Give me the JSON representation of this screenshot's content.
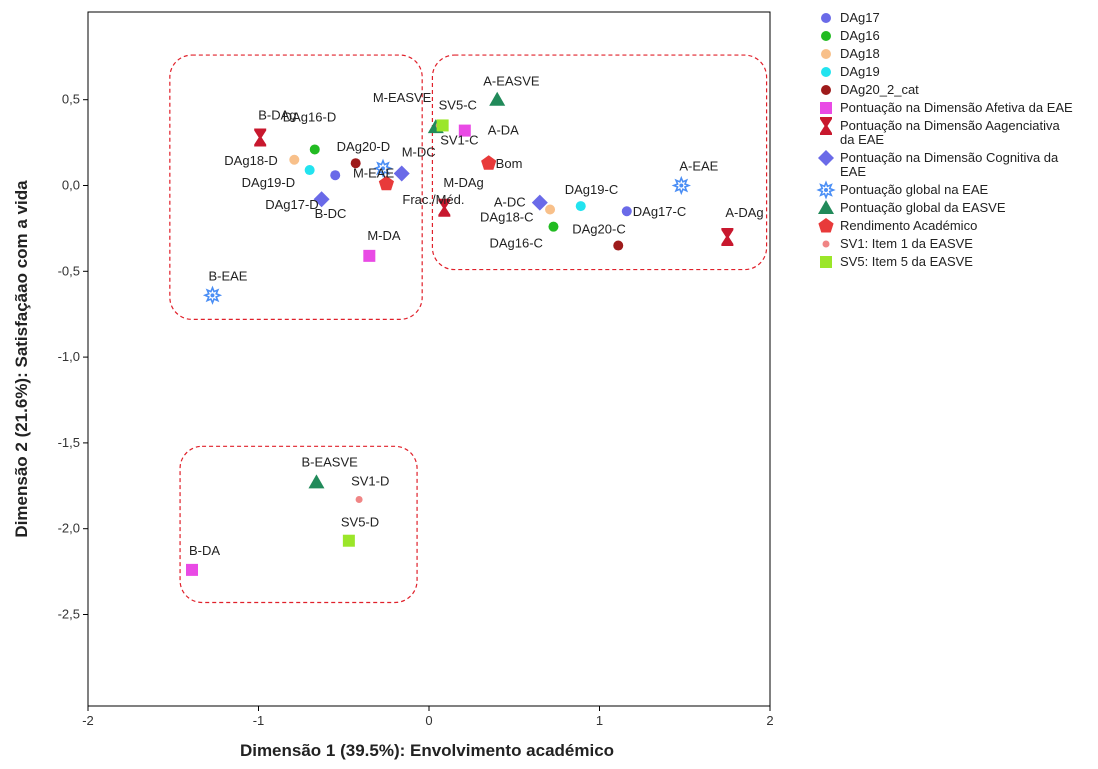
{
  "chart_data": {
    "type": "scatter",
    "xlabel": "Dimensão 1 (39.5%): Envolvimento académico",
    "ylabel": "Dimensão 2 (21.6%): Satisfaçãao com a vida",
    "xlim": [
      -2,
      2
    ],
    "ylim": [
      -3.0,
      0.85
    ],
    "xticks": [
      -2,
      -1,
      0,
      1,
      2
    ],
    "xtick_labels": [
      "-2",
      "-1",
      "0",
      "1",
      "2"
    ],
    "yticks": [
      0.5,
      0.0,
      -0.5,
      -1.0,
      -1.5,
      -2.0,
      -2.5
    ],
    "ytick_labels": [
      "0,5",
      "0,0",
      "-0,5",
      "-1,0",
      "-1,5",
      "-2,0",
      "-2,5"
    ],
    "grid": false,
    "legend_position": "right",
    "series": [
      {
        "name": "DAg17",
        "marker": "circle",
        "color": "#6a6ae8",
        "points": [
          {
            "label": "DAg17-D",
            "x": -0.55,
            "y": 0.06
          },
          {
            "label": "DAg17-C",
            "x": 1.16,
            "y": -0.15
          }
        ]
      },
      {
        "name": "DAg16",
        "marker": "circle",
        "color": "#22bb22",
        "points": [
          {
            "label": "DAg16-D",
            "x": -0.67,
            "y": 0.21
          },
          {
            "label": "DAg16-C",
            "x": 0.73,
            "y": -0.24
          }
        ]
      },
      {
        "name": "DAg18",
        "marker": "circle",
        "color": "#f8c08a",
        "points": [
          {
            "label": "DAg18-D",
            "x": -0.79,
            "y": 0.15
          },
          {
            "label": "DAg18-C",
            "x": 0.71,
            "y": -0.14
          }
        ]
      },
      {
        "name": "DAg19",
        "marker": "circle",
        "color": "#22e3ef",
        "points": [
          {
            "label": "DAg19-D",
            "x": -0.7,
            "y": 0.09
          },
          {
            "label": "DAg19-C",
            "x": 0.89,
            "y": -0.12
          }
        ]
      },
      {
        "name": "DAg20_2_cat",
        "marker": "circle",
        "color": "#9e1b1b",
        "points": [
          {
            "label": "DAg20-D",
            "x": -0.43,
            "y": 0.13
          },
          {
            "label": "DAg20-C",
            "x": 1.11,
            "y": -0.35
          }
        ]
      },
      {
        "name": "Pontuação na Dimensão Afetiva da EAE",
        "marker": "square",
        "color": "#e94ae5",
        "points": [
          {
            "label": "A-DA",
            "x": 0.21,
            "y": 0.32
          },
          {
            "label": "M-DA",
            "x": -0.35,
            "y": -0.41
          },
          {
            "label": "B-DA",
            "x": -1.39,
            "y": -2.24
          }
        ]
      },
      {
        "name": "Pontuação na Dimensão Aagenciativa da EAE",
        "marker": "hourglass",
        "color": "#c8182e",
        "points": [
          {
            "label": "B-DAg",
            "x": -0.99,
            "y": 0.28
          },
          {
            "label": "M-DAg",
            "x": 0.09,
            "y": -0.13
          },
          {
            "label": "A-DAg",
            "x": 1.75,
            "y": -0.3
          }
        ]
      },
      {
        "name": "Pontuação na Dimensão Cognitiva da EAE",
        "marker": "diamond",
        "color": "#6a6ae8",
        "points": [
          {
            "label": "B-DC",
            "x": -0.63,
            "y": -0.08
          },
          {
            "label": "M-DC",
            "x": -0.16,
            "y": 0.07
          },
          {
            "label": "A-DC",
            "x": 0.65,
            "y": -0.1
          }
        ]
      },
      {
        "name": "Pontuação global na EAE",
        "marker": "star",
        "color": "#4a8ef5",
        "points": [
          {
            "label": "M-EAE",
            "x": -0.27,
            "y": 0.1
          },
          {
            "label": "A-EAE",
            "x": 1.48,
            "y": 0.0
          },
          {
            "label": "B-EAE",
            "x": -1.27,
            "y": -0.64
          }
        ]
      },
      {
        "name": "Pontuação global da EASVE",
        "marker": "triangle",
        "color": "#218a5a",
        "points": [
          {
            "label": "M-EASVE",
            "x": 0.04,
            "y": 0.34
          },
          {
            "label": "A-EASVE",
            "x": 0.4,
            "y": 0.5
          },
          {
            "label": "B-EASVE",
            "x": -0.66,
            "y": -1.73
          }
        ]
      },
      {
        "name": "Rendimento Académico",
        "marker": "pentagon",
        "color": "#e83a3a",
        "points": [
          {
            "label": "Frac./Méd.",
            "x": -0.25,
            "y": 0.01
          },
          {
            "label": "Bom",
            "x": 0.35,
            "y": 0.13
          }
        ]
      },
      {
        "name": "SV1: Item 1 da EASVE",
        "marker": "smallcircle",
        "color": "#f08585",
        "points": [
          {
            "label": "SV1-C",
            "x": 0.06,
            "y": 0.35
          },
          {
            "label": "SV1-D",
            "x": -0.41,
            "y": -1.83
          }
        ]
      },
      {
        "name": "SV5: Item 5 da EASVE",
        "marker": "square",
        "color": "#9be629",
        "points": [
          {
            "label": "SV5-C",
            "x": 0.08,
            "y": 0.35
          },
          {
            "label": "SV5-D",
            "x": -0.47,
            "y": -2.07
          }
        ]
      }
    ],
    "groups": [
      {
        "name": "group-upper-left",
        "x0": -1.52,
        "x1": -0.04,
        "y0": -0.78,
        "y1": 0.76
      },
      {
        "name": "group-upper-right",
        "x0": 0.02,
        "x1": 1.98,
        "y0": -0.49,
        "y1": 0.76
      },
      {
        "name": "group-bottom",
        "x0": -1.46,
        "x1": -0.07,
        "y0": -2.43,
        "y1": -1.52
      }
    ]
  }
}
